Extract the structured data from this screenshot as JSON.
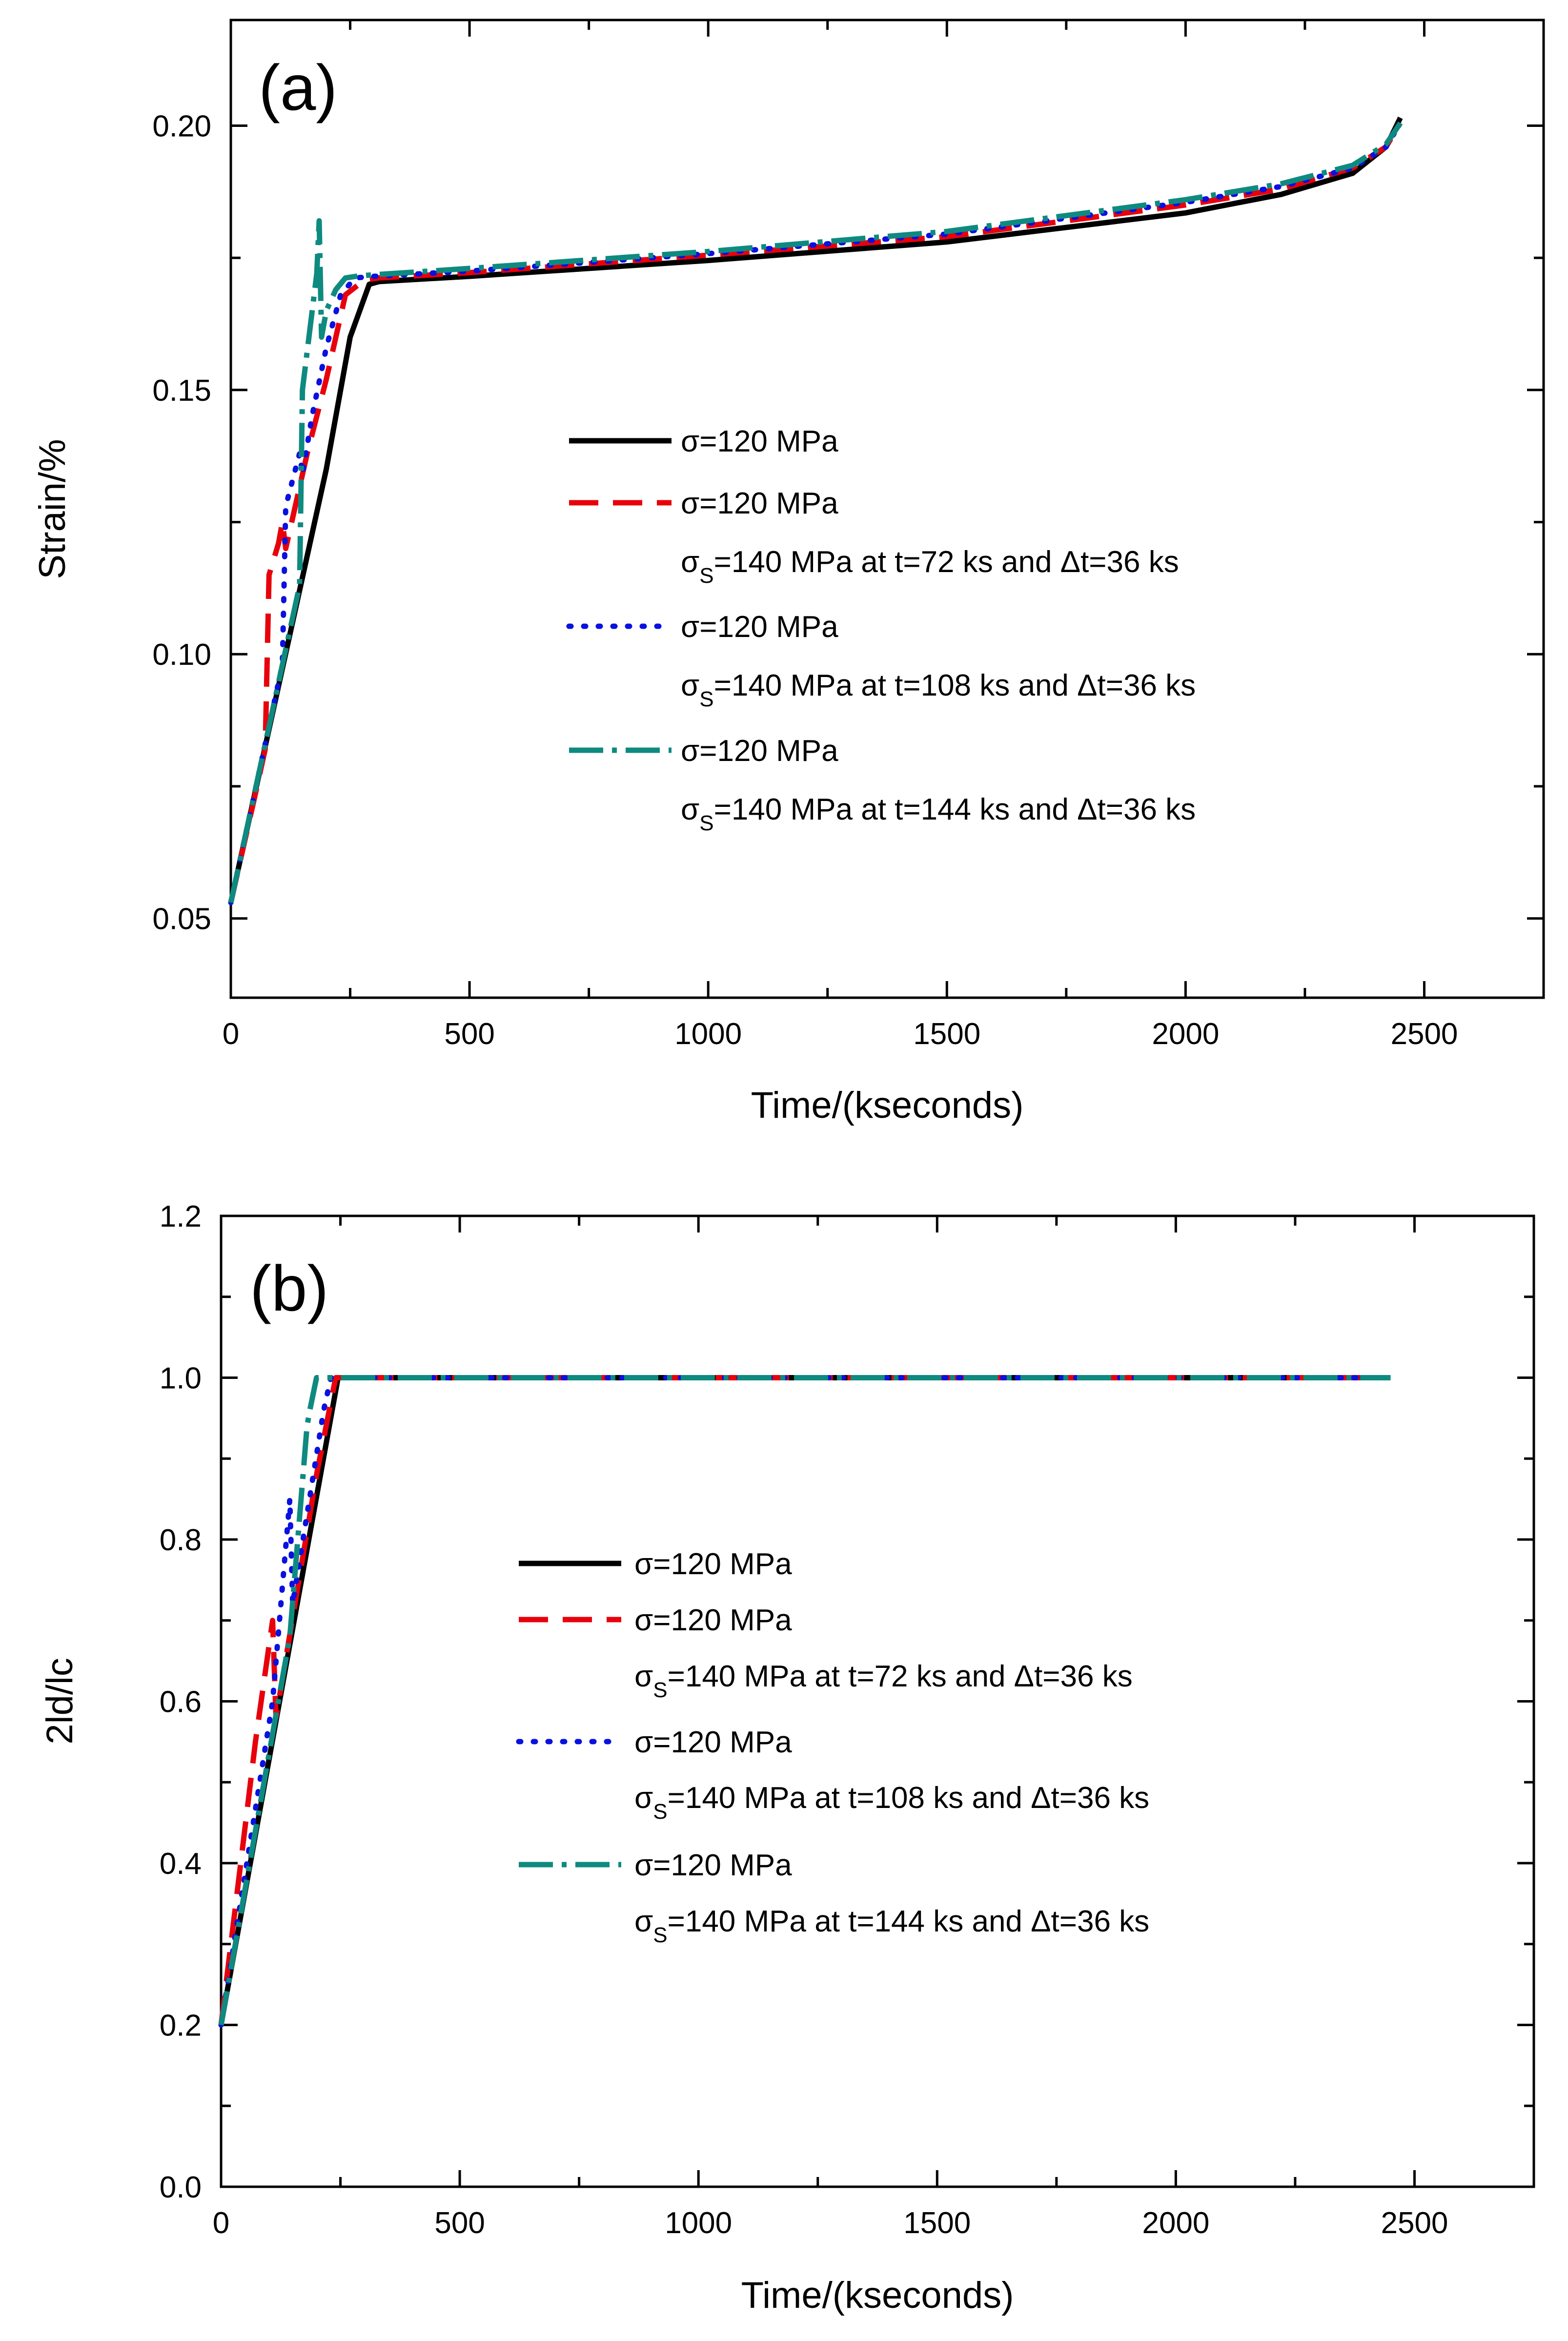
{
  "figure": {
    "background": "#ffffff"
  },
  "chart_data": [
    {
      "id": "a",
      "type": "line",
      "panel_label": "(a)",
      "xlabel": "Time/(kseconds)",
      "ylabel": "Strain/%",
      "xlim": [
        0,
        2750
      ],
      "ylim": [
        0.035,
        0.22
      ],
      "xticks": [
        0,
        500,
        1000,
        1500,
        2000,
        2500
      ],
      "yticks": [
        0.05,
        0.1,
        0.15,
        0.2
      ],
      "ytick_labels": [
        "0.05",
        "0.10",
        "0.15",
        "0.20"
      ],
      "series": [
        {
          "name": "σ=120 MPa",
          "sub_base": "",
          "sub_script": "",
          "sub_rest": "",
          "color": "#000000",
          "dash": "",
          "linecap": "butt",
          "x": [
            0,
            100,
            200,
            250,
            290,
            310,
            500,
            1000,
            1500,
            2000,
            2200,
            2350,
            2420,
            2450
          ],
          "y": [
            0.053,
            0.094,
            0.135,
            0.16,
            0.17,
            0.1705,
            0.1715,
            0.1745,
            0.178,
            0.1835,
            0.187,
            0.191,
            0.196,
            0.2015
          ]
        },
        {
          "name": "σ=120 MPa",
          "sub_base": "σ",
          "sub_script": "S",
          "sub_rest": "=140 MPa at t=72 ks and Δt=36 ks",
          "color": "#e8000b",
          "dash": "60,30",
          "linecap": "butt",
          "x": [
            0,
            50,
            72,
            80,
            100,
            108,
            115,
            160,
            200,
            220,
            240,
            280,
            310,
            500,
            1000,
            1500,
            2000,
            2200,
            2350,
            2420,
            2450
          ],
          "y": [
            0.053,
            0.073,
            0.082,
            0.115,
            0.121,
            0.125,
            0.12,
            0.138,
            0.152,
            0.16,
            0.168,
            0.1708,
            0.1712,
            0.1722,
            0.1755,
            0.179,
            0.185,
            0.188,
            0.192,
            0.196,
            0.2005
          ]
        },
        {
          "name": "σ=120 MPa",
          "sub_base": "σ",
          "sub_script": "S",
          "sub_rest": "=140 MPa at t=108 ks and Δt=36 ks",
          "color": "#0a10e0",
          "dash": "4,26",
          "linecap": "round",
          "x": [
            0,
            108,
            115,
            144,
            150,
            170,
            200,
            230,
            260,
            300,
            500,
            1000,
            1500,
            2000,
            2200,
            2350,
            2420,
            2450
          ],
          "y": [
            0.053,
            0.098,
            0.128,
            0.138,
            0.134,
            0.145,
            0.158,
            0.168,
            0.1712,
            0.1715,
            0.1725,
            0.1758,
            0.1795,
            0.1855,
            0.1885,
            0.192,
            0.196,
            0.2005
          ]
        },
        {
          "name": "σ=120 MPa",
          "sub_base": "σ",
          "sub_script": "S",
          "sub_rest": "=140 MPa at t=144 ks and Δt=36 ks",
          "color": "#0e8a80",
          "dash": "70,18,10,18",
          "linecap": "butt",
          "x": [
            0,
            144,
            150,
            180,
            185,
            190,
            200,
            220,
            240,
            270,
            300,
            500,
            1000,
            1500,
            2000,
            2200,
            2350,
            2420,
            2450
          ],
          "y": [
            0.053,
            0.113,
            0.15,
            0.172,
            0.182,
            0.16,
            0.165,
            0.169,
            0.1712,
            0.1716,
            0.1718,
            0.173,
            0.1762,
            0.18,
            0.186,
            0.189,
            0.1925,
            0.1965,
            0.2005
          ]
        }
      ]
    },
    {
      "id": "b",
      "type": "line",
      "panel_label": "(b)",
      "xlabel": "Time/(kseconds)",
      "ylabel": "2ld/lc",
      "xlim": [
        0,
        2750
      ],
      "ylim": [
        0.0,
        1.2
      ],
      "xticks": [
        0,
        500,
        1000,
        1500,
        2000,
        2500
      ],
      "yticks": [
        0.0,
        0.2,
        0.4,
        0.6,
        0.8,
        1.0,
        1.2
      ],
      "ytick_labels": [
        "0.0",
        "0.2",
        "0.4",
        "0.6",
        "0.8",
        "1.0",
        "1.2"
      ],
      "series": [
        {
          "name": "σ=120 MPa",
          "sub_base": "",
          "sub_script": "",
          "sub_rest": "",
          "color": "#000000",
          "dash": "",
          "linecap": "butt",
          "x": [
            0,
            245,
            2450
          ],
          "y": [
            0.2,
            1.0,
            1.0
          ]
        },
        {
          "name": "σ=120 MPa",
          "sub_base": "σ",
          "sub_script": "S",
          "sub_rest": "=140 MPa at t=72 ks and Δt=36 ks",
          "color": "#e8000b",
          "dash": "60,30",
          "linecap": "butt",
          "x": [
            0,
            72,
            108,
            115,
            200,
            240,
            2450
          ],
          "y": [
            0.2,
            0.55,
            0.7,
            0.58,
            0.88,
            1.0,
            1.0
          ]
        },
        {
          "name": "σ=120 MPa",
          "sub_base": "σ",
          "sub_script": "S",
          "sub_rest": "=140 MPa at t=108 ks and Δt=36 ks",
          "color": "#0a10e0",
          "dash": "4,26",
          "linecap": "round",
          "x": [
            0,
            108,
            144,
            150,
            215,
            230,
            2450
          ],
          "y": [
            0.2,
            0.6,
            0.85,
            0.72,
            0.96,
            1.0,
            1.0
          ]
        },
        {
          "name": "σ=120 MPa",
          "sub_base": "σ",
          "sub_script": "S",
          "sub_rest": "=140 MPa at t=144 ks and Δt=36 ks",
          "color": "#0e8a80",
          "dash": "70,18,10,18",
          "linecap": "butt",
          "x": [
            0,
            144,
            180,
            186,
            200,
            2450
          ],
          "y": [
            0.2,
            0.68,
            0.94,
            0.96,
            1.0,
            1.0
          ]
        }
      ]
    }
  ]
}
